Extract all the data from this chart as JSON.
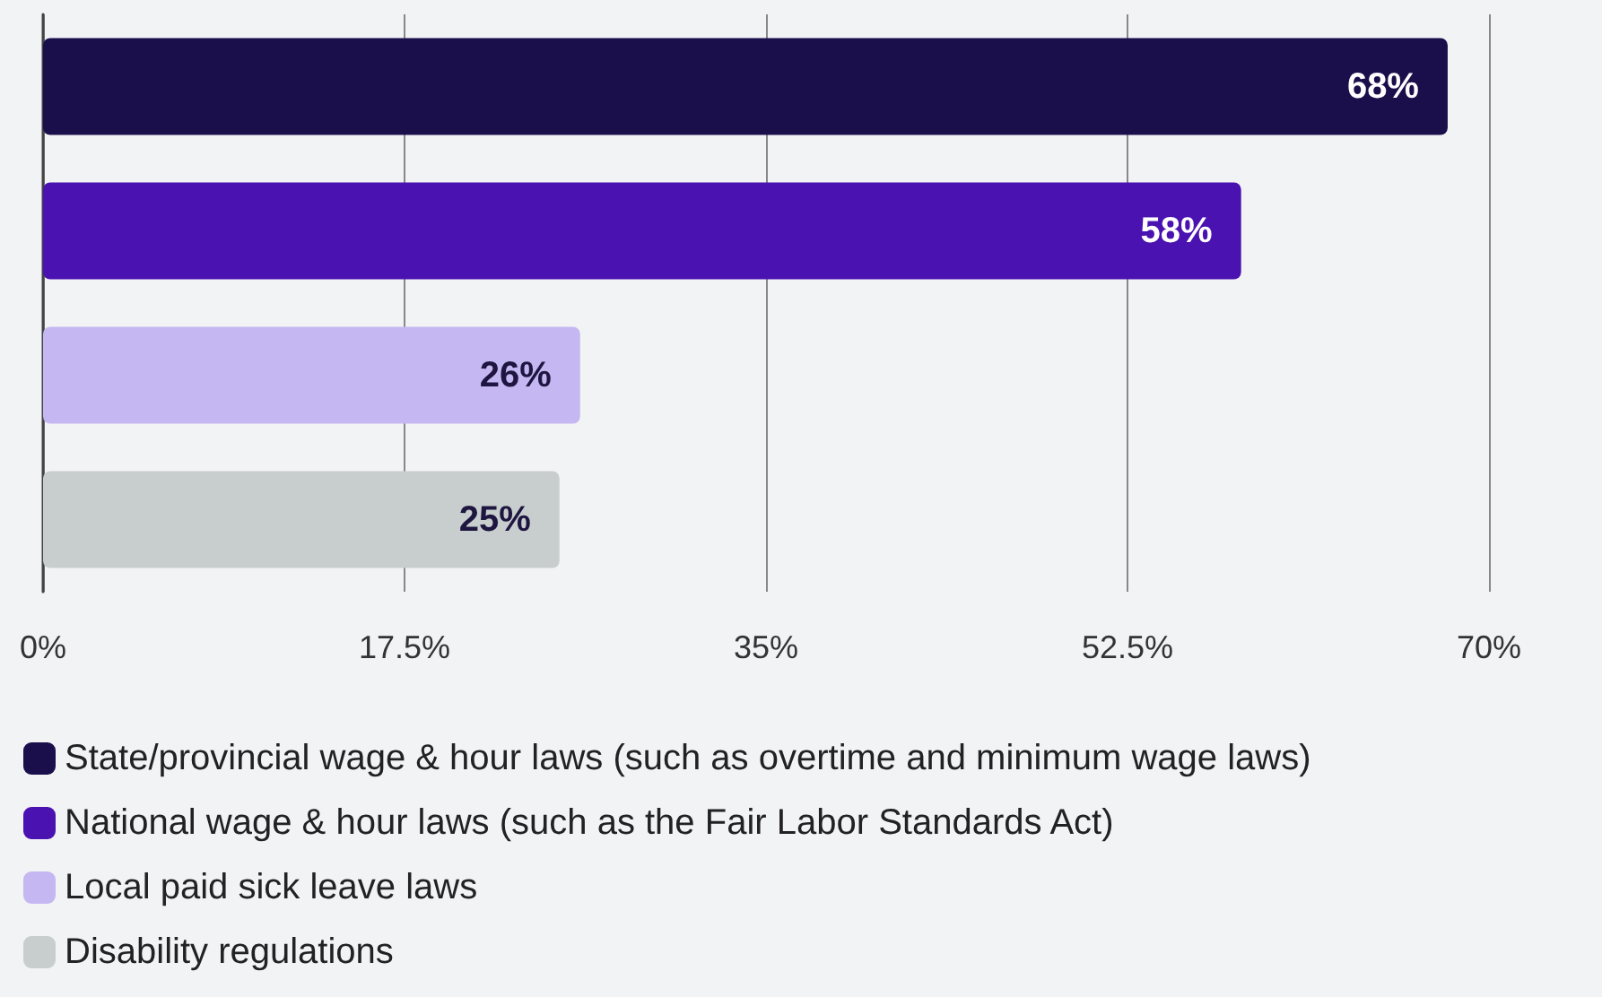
{
  "chart_data": {
    "type": "bar",
    "orientation": "horizontal",
    "stacked": true,
    "categories": [
      null,
      null,
      null,
      null
    ],
    "series": [
      {
        "name": "State/provincial wage & hour laws (such as overtime and minimum wage laws)",
        "color": "#1a0f4a",
        "values": [
          68,
          null,
          null,
          null
        ],
        "value_labels": [
          "68%",
          null,
          null,
          null
        ]
      },
      {
        "name": "National wage & hour laws (such as the Fair Labor Standards Act)",
        "color": "#4a12b0",
        "values": [
          null,
          58,
          null,
          null
        ],
        "value_labels": [
          null,
          "58%",
          null,
          null
        ]
      },
      {
        "name": "Local paid sick leave laws",
        "color": "#c5b8f2",
        "values": [
          null,
          null,
          26,
          null
        ],
        "value_labels": [
          null,
          null,
          "26%",
          null
        ]
      },
      {
        "name": "Disability regulations",
        "color": "#c8cecd",
        "values": [
          null,
          null,
          null,
          25
        ],
        "value_labels": [
          null,
          null,
          null,
          "25%"
        ]
      }
    ],
    "xlim": [
      0,
      70
    ],
    "xticks": [
      {
        "value": 0,
        "label": "0%"
      },
      {
        "value": 17.5,
        "label": "17.5%"
      },
      {
        "value": 35,
        "label": "35%"
      },
      {
        "value": 52.5,
        "label": "52.5%"
      },
      {
        "value": 70,
        "label": "70%"
      }
    ],
    "grid": "x",
    "legend": "bottom"
  }
}
